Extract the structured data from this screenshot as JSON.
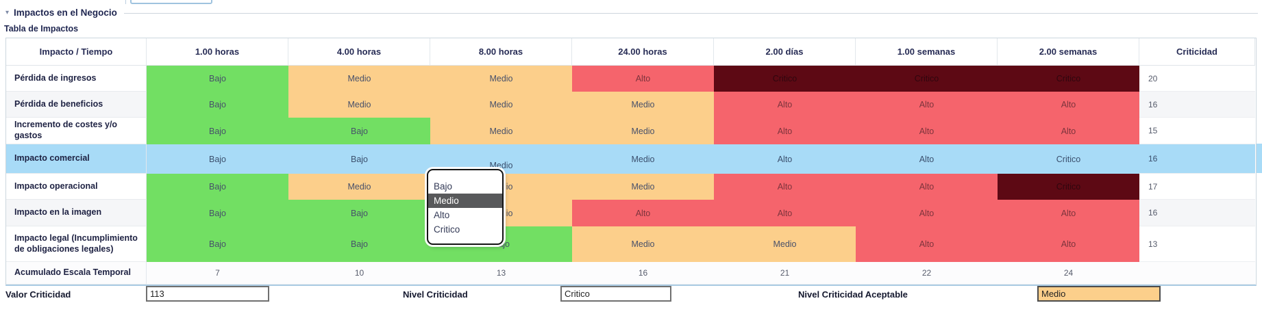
{
  "section": {
    "title": "Impactos en el Negocio",
    "subtitle": "Tabla de Impactos"
  },
  "table": {
    "headers": [
      "Impacto / Tiempo",
      "1.00 horas",
      "4.00 horas",
      "8.00 horas",
      "24.00 horas",
      "2.00 días",
      "1.00 semanas",
      "2.00 semanas",
      "Criticidad"
    ],
    "rows": [
      {
        "label": "Pérdida de ingresos",
        "levels": [
          "Bajo",
          "Medio",
          "Medio",
          "Alto",
          "Critico",
          "Critico",
          "Critico"
        ],
        "criticidad": "20",
        "selected": false
      },
      {
        "label": "Pérdida de beneficios",
        "levels": [
          "Bajo",
          "Medio",
          "Medio",
          "Medio",
          "Alto",
          "Alto",
          "Alto"
        ],
        "criticidad": "16",
        "selected": false
      },
      {
        "label": "Incremento de costes y/o gastos",
        "levels": [
          "Bajo",
          "Bajo",
          "Medio",
          "Medio",
          "Alto",
          "Alto",
          "Alto"
        ],
        "criticidad": "15",
        "selected": false
      },
      {
        "label": "Impacto comercial",
        "levels": [
          "Bajo",
          "Bajo",
          "Medio",
          "Medio",
          "Alto",
          "Alto",
          "Critico"
        ],
        "criticidad": "16",
        "selected": true,
        "editing_col": 2
      },
      {
        "label": "Impacto operacional",
        "levels": [
          "Bajo",
          "Medio",
          "Medio",
          "Medio",
          "Alto",
          "Alto",
          "Critico"
        ],
        "criticidad": "17",
        "selected": false
      },
      {
        "label": "Impacto en la imagen",
        "levels": [
          "Bajo",
          "Bajo",
          "Medio",
          "Alto",
          "Alto",
          "Alto",
          "Alto"
        ],
        "criticidad": "16",
        "selected": false
      },
      {
        "label": "Impacto legal (Incumplimiento de obligaciones legales)",
        "levels": [
          "Bajo",
          "Bajo",
          "Bajo",
          "Medio",
          "Medio",
          "Alto",
          "Alto"
        ],
        "criticidad": "13",
        "selected": false
      }
    ],
    "footer_row": {
      "label": "Acumulado Escala Temporal",
      "values": [
        "7",
        "10",
        "13",
        "16",
        "21",
        "22",
        "24"
      ],
      "criticidad": ""
    }
  },
  "dropdown": {
    "options": [
      "Bajo",
      "Medio",
      "Alto",
      "Critico"
    ],
    "selected": "Medio"
  },
  "controls": {
    "valor_criticidad": {
      "label": "Valor Criticidad",
      "value": "113"
    },
    "nivel_criticidad": {
      "label": "Nivel Criticidad",
      "value": "Critico"
    },
    "nivel_criticidad_aceptable": {
      "label": "Nivel Criticidad Aceptable",
      "value": "Medio"
    }
  },
  "colors": {
    "bajo": "#72DF63",
    "medio": "#FCCF8B",
    "alto": "#F5646C",
    "critico": "#5D0914",
    "selected_row": "#A8DBF7",
    "text_default": "#47506a",
    "text_alto": "#7c333c",
    "text_critico": "#2f060e",
    "text_selected": "#3b4f6d"
  }
}
